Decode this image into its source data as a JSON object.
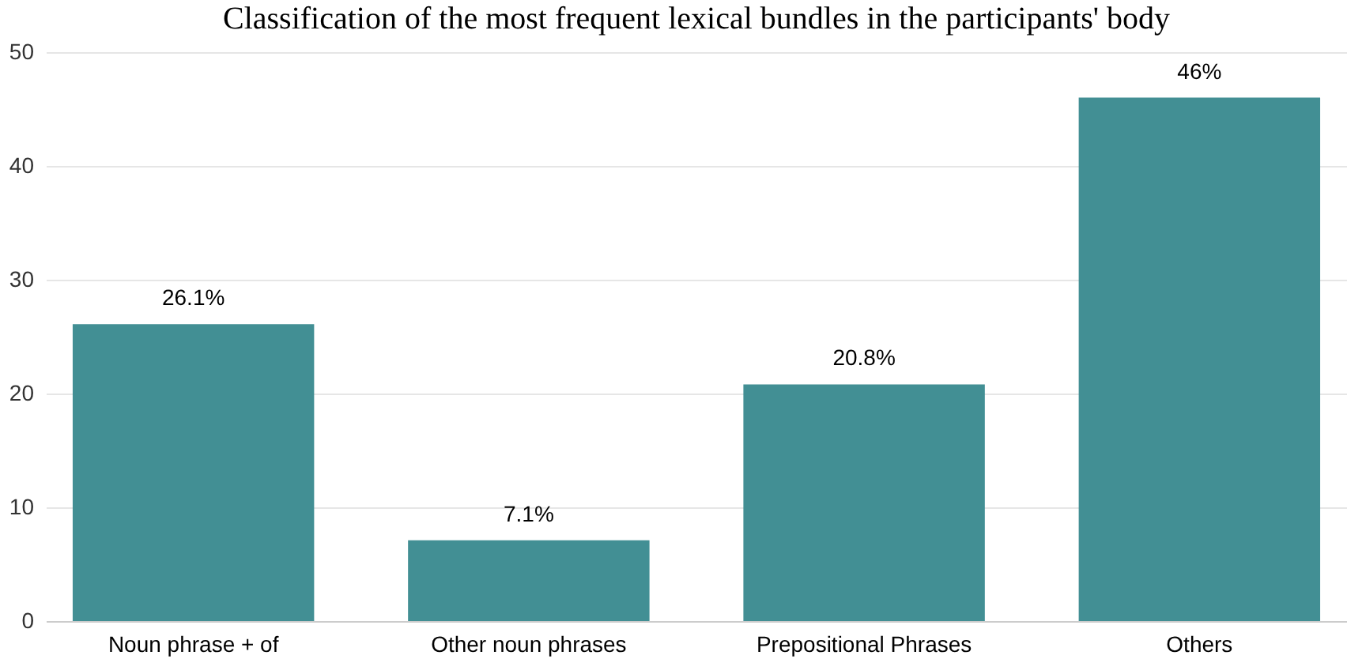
{
  "chart_data": {
    "type": "bar",
    "title": "Classification of the most frequent lexical bundles in the participants' body",
    "categories": [
      "Noun phrase + of",
      "Other noun phrases",
      "Prepositional Phrases",
      "Others"
    ],
    "values": [
      26.1,
      7.1,
      20.8,
      46
    ],
    "value_labels": [
      "26.1%",
      "7.1%",
      "20.8%",
      "46%"
    ],
    "color": "#428f94",
    "ylim": [
      0,
      50
    ],
    "yticks": [
      0,
      10,
      20,
      30,
      40,
      50
    ],
    "grid": "y"
  }
}
